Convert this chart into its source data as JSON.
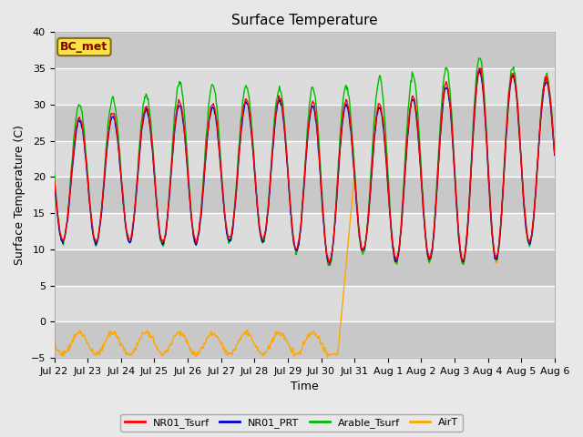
{
  "title": "Surface Temperature",
  "ylabel": "Surface Temperature (C)",
  "xlabel": "Time",
  "ylim": [
    -5,
    40
  ],
  "xlim_hours": [
    0,
    360
  ],
  "figure_bg": "#e8e8e8",
  "plot_bg_light": "#dcdcdc",
  "plot_bg_dark": "#c8c8c8",
  "annotation_label": "BC_met",
  "annotation_box_facecolor": "#f5e642",
  "annotation_box_edgecolor": "#8b6914",
  "annotation_text_color": "#8b0000",
  "x_tick_labels": [
    "Jul 22",
    "Jul 23",
    "Jul 24",
    "Jul 25",
    "Jul 26",
    "Jul 27",
    "Jul 28",
    "Jul 29",
    "Jul 30",
    "Jul 31",
    "Aug 1",
    "Aug 2",
    "Aug 3",
    "Aug 4",
    "Aug 5",
    "Aug 6"
  ],
  "x_tick_positions": [
    0,
    24,
    48,
    72,
    96,
    120,
    144,
    168,
    192,
    216,
    240,
    264,
    288,
    312,
    336,
    360
  ],
  "series_colors": {
    "NR01_Tsurf": "#ff0000",
    "NR01_PRT": "#0000cd",
    "Arable_Tsurf": "#00bb00",
    "AirT": "#ffa500"
  },
  "series_linewidth": 1.0,
  "grid_color": "#ffffff",
  "grid_linewidth": 1.0,
  "yticks": [
    -5,
    0,
    5,
    10,
    15,
    20,
    25,
    30,
    35,
    40
  ],
  "legend_labels": [
    "NR01_Tsurf",
    "NR01_PRT",
    "Arable_Tsurf",
    "AirT"
  ],
  "title_fontsize": 11,
  "axis_label_fontsize": 9,
  "tick_fontsize": 8,
  "legend_fontsize": 8
}
